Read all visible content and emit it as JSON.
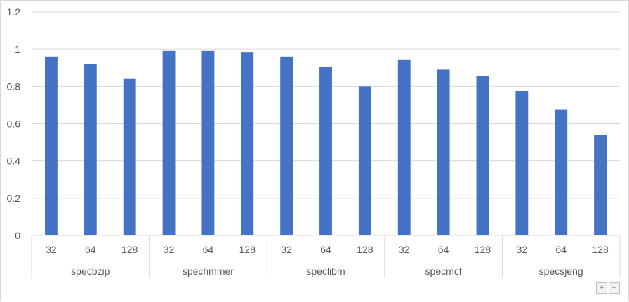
{
  "chart_data": {
    "type": "bar",
    "y_ticks": [
      "0",
      "0.2",
      "0.4",
      "0.6",
      "0.8",
      "1",
      "1.2"
    ],
    "ylim": [
      0,
      1.2
    ],
    "grid": true,
    "legend": "none",
    "bar_color": "#4472C4",
    "groups": [
      {
        "name": "specbzip",
        "categories": [
          "32",
          "64",
          "128"
        ],
        "values": [
          0.96,
          0.92,
          0.84
        ]
      },
      {
        "name": "spechmmer",
        "categories": [
          "32",
          "64",
          "128"
        ],
        "values": [
          0.99,
          0.99,
          0.985
        ]
      },
      {
        "name": "speclibm",
        "categories": [
          "32",
          "64",
          "128"
        ],
        "values": [
          0.96,
          0.905,
          0.8
        ]
      },
      {
        "name": "specmcf",
        "categories": [
          "32",
          "64",
          "128"
        ],
        "values": [
          0.945,
          0.89,
          0.855
        ]
      },
      {
        "name": "specsjeng",
        "categories": [
          "32",
          "64",
          "128"
        ],
        "values": [
          0.775,
          0.675,
          0.54
        ]
      }
    ]
  },
  "zoom": {
    "plus_label": "+",
    "minus_label": "−"
  }
}
